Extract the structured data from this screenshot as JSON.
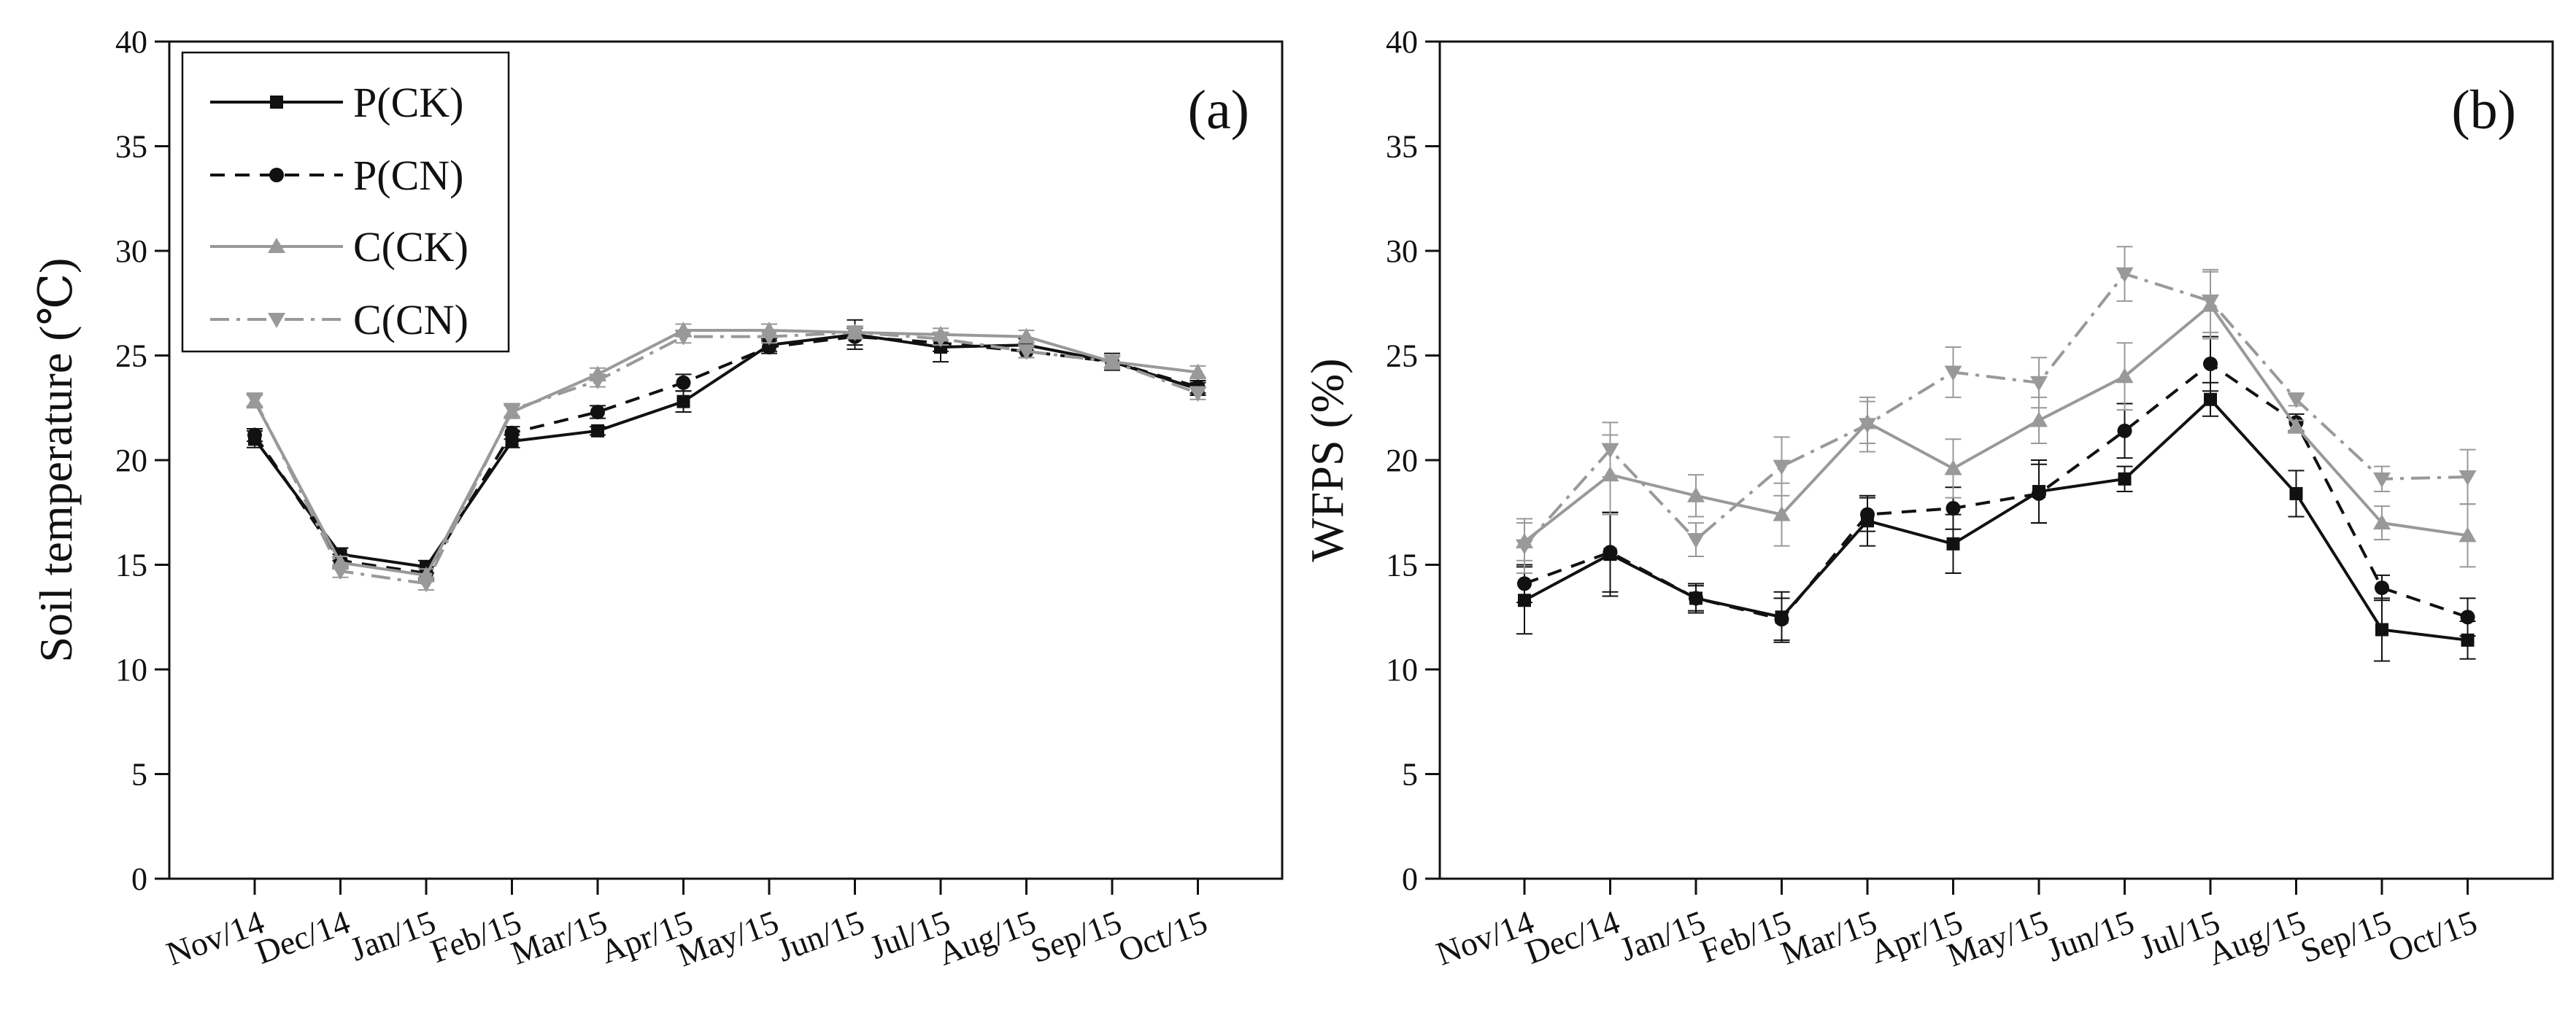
{
  "chart_data": [
    {
      "type": "line",
      "panel_label": "(a)",
      "title": "",
      "xlabel": "",
      "ylabel": "Soil temperature (℃)",
      "categories": [
        "Nov/14",
        "Dec/14",
        "Jan/15",
        "Feb/15",
        "Mar/15",
        "Apr/15",
        "May/15",
        "Jun/15",
        "Jul/15",
        "Aug/15",
        "Sep/15",
        "Oct/15"
      ],
      "ylim": [
        0,
        40
      ],
      "yticks": [
        "0",
        "5",
        "10",
        "15",
        "20",
        "25",
        "30",
        "35",
        "40"
      ],
      "grid": false,
      "legend_position": "top-left",
      "series": [
        {
          "name": "P(CK)",
          "color": "#111111",
          "dash": "solid",
          "marker": "square",
          "values": [
            21.0,
            15.5,
            14.9,
            20.9,
            21.4,
            22.8,
            25.5,
            26.0,
            25.4,
            25.5,
            24.7,
            23.4
          ],
          "errors": [
            0.4,
            0.3,
            0.3,
            0.3,
            0.2,
            0.5,
            0.3,
            0.7,
            0.7,
            0.3,
            0.4,
            0.3
          ]
        },
        {
          "name": "P(CN)",
          "color": "#111111",
          "dash": "dashed",
          "marker": "circle",
          "values": [
            21.2,
            15.2,
            14.6,
            21.3,
            22.3,
            23.7,
            25.4,
            25.9,
            25.6,
            25.2,
            24.7,
            23.5
          ],
          "errors": [
            0.3,
            0.3,
            0.3,
            0.3,
            0.3,
            0.4,
            0.3,
            0.4,
            0.4,
            0.3,
            0.3,
            0.3
          ]
        },
        {
          "name": "C(CK)",
          "color": "#999999",
          "dash": "solid",
          "marker": "triangle-up",
          "values": [
            22.8,
            15.1,
            14.5,
            22.3,
            24.1,
            26.2,
            26.2,
            26.1,
            26.0,
            25.9,
            24.7,
            24.2
          ],
          "errors": [
            0.3,
            0.3,
            0.3,
            0.3,
            0.3,
            0.3,
            0.3,
            0.3,
            0.3,
            0.3,
            0.3,
            0.3
          ]
        },
        {
          "name": "C(CN)",
          "color": "#999999",
          "dash": "dashdot",
          "marker": "triangle-down",
          "values": [
            22.9,
            14.7,
            14.1,
            22.4,
            23.8,
            25.9,
            25.9,
            26.1,
            25.8,
            25.2,
            24.7,
            23.2
          ],
          "errors": [
            0.3,
            0.3,
            0.3,
            0.3,
            0.3,
            0.3,
            0.3,
            0.3,
            0.3,
            0.3,
            0.3,
            0.3
          ]
        }
      ]
    },
    {
      "type": "line",
      "panel_label": "(b)",
      "title": "",
      "xlabel": "",
      "ylabel": "WFPS (%)",
      "categories": [
        "Nov/14",
        "Dec/14",
        "Jan/15",
        "Feb/15",
        "Mar/15",
        "Apr/15",
        "May/15",
        "Jun/15",
        "Jul/15",
        "Aug/15",
        "Sep/15",
        "Oct/15"
      ],
      "ylim": [
        0,
        40
      ],
      "yticks": [
        "0",
        "5",
        "10",
        "15",
        "20",
        "25",
        "30",
        "35",
        "40"
      ],
      "grid": false,
      "legend_position": "none",
      "series": [
        {
          "name": "P(CK)",
          "color": "#111111",
          "dash": "solid",
          "marker": "square",
          "values": [
            13.3,
            15.5,
            13.4,
            12.5,
            17.1,
            16.0,
            18.5,
            19.1,
            22.9,
            18.4,
            11.9,
            11.4
          ],
          "errors": [
            1.6,
            2.0,
            0.6,
            1.2,
            1.2,
            1.4,
            1.5,
            0.6,
            0.8,
            1.1,
            1.5,
            0.9
          ]
        },
        {
          "name": "P(CN)",
          "color": "#111111",
          "dash": "dashed",
          "marker": "circle",
          "values": [
            14.1,
            15.6,
            13.4,
            12.4,
            17.4,
            17.7,
            18.4,
            21.4,
            24.6,
            21.8,
            13.9,
            12.5
          ],
          "errors": [
            0.9,
            1.9,
            0.7,
            1.0,
            0.8,
            1.0,
            1.4,
            1.3,
            1.3,
            0.4,
            0.6,
            0.9
          ]
        },
        {
          "name": "C(CK)",
          "color": "#999999",
          "dash": "solid",
          "marker": "triangle-up",
          "values": [
            16.1,
            19.3,
            18.3,
            17.4,
            21.8,
            19.6,
            21.9,
            24.0,
            27.4,
            21.6,
            17.0,
            16.4
          ],
          "errors": [
            0.9,
            1.9,
            1.0,
            1.5,
            1.0,
            1.4,
            1.1,
            1.6,
            1.6,
            0.3,
            0.8,
            1.5
          ]
        },
        {
          "name": "C(CN)",
          "color": "#999999",
          "dash": "dashdot",
          "marker": "triangle-down",
          "values": [
            15.9,
            20.5,
            16.2,
            19.7,
            21.7,
            24.2,
            23.7,
            28.9,
            27.6,
            22.9,
            19.1,
            19.2
          ],
          "errors": [
            1.3,
            1.3,
            0.8,
            1.4,
            1.3,
            1.2,
            1.2,
            1.3,
            1.5,
            0.3,
            0.6,
            1.3
          ]
        }
      ]
    }
  ]
}
